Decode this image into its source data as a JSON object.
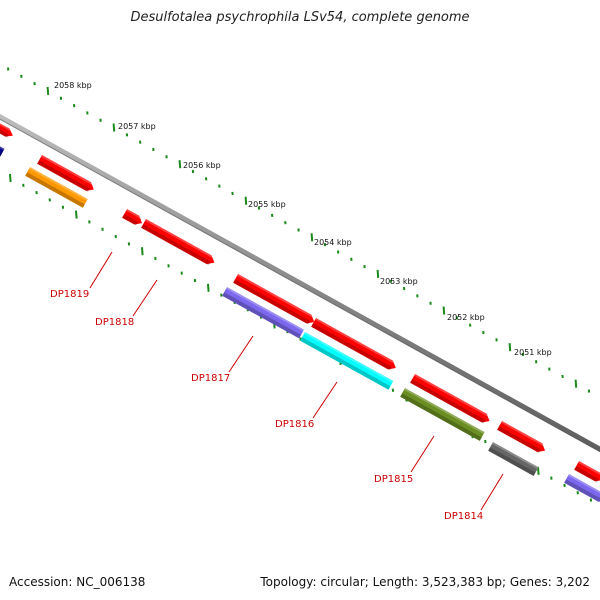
{
  "title": "Desulfotalea psychrophila LSv54, complete genome",
  "footer": {
    "accession": "Accession: NC_006138",
    "summary": "Topology: circular; Length: 3,523,383 bp; Genes: 3,202"
  },
  "colors": {
    "backbone": "#8a8a8a",
    "tick": "#1a8a1a",
    "label": "#cc0000"
  },
  "scale_labels": [
    "2058 kbp",
    "2057 kbp",
    "2056 kbp",
    "2055 kbp",
    "2054 kbp",
    "2053 kbp",
    "2052 kbp",
    "2051 kbp"
  ],
  "gene_labels": [
    "DP1819",
    "DP1818",
    "DP1817",
    "DP1816",
    "DP1815",
    "DP1814"
  ],
  "features": [
    {
      "name": "feature-red",
      "color": "#ff0000"
    },
    {
      "name": "feature-orange",
      "color": "#ff9900"
    },
    {
      "name": "feature-purple",
      "color": "#7b68ee"
    },
    {
      "name": "feature-cyan",
      "color": "#00ffff"
    },
    {
      "name": "feature-olive",
      "color": "#6b8e23"
    },
    {
      "name": "feature-gray",
      "color": "#666666"
    },
    {
      "name": "feature-navy",
      "color": "#00008b"
    }
  ]
}
